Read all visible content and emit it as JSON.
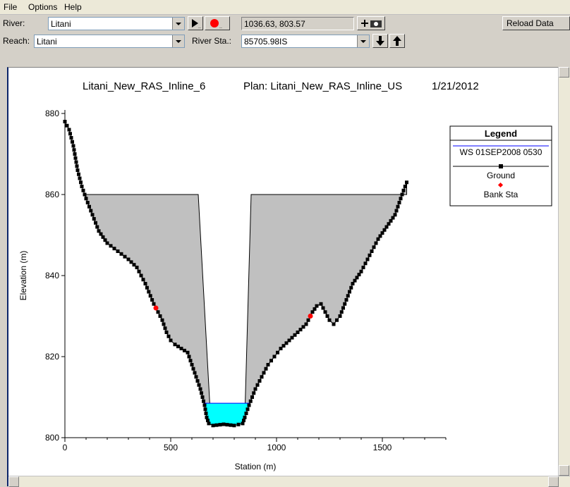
{
  "menu": {
    "file": "File",
    "options": "Options",
    "help": "Help"
  },
  "toolbar": {
    "river_label": "River:",
    "river_value": "Litani",
    "reach_label": "Reach:",
    "reach_value": "Litani",
    "river_sta_label": "River Sta.:",
    "river_sta_value": "85705.98IS",
    "coords": "1036.63, 803.57",
    "reload_label": "Reload Data"
  },
  "plot_header": {
    "geometry": "Litani_New_RAS_Inline_6",
    "plan": "Plan: Litani_New_RAS_Inline_US",
    "date": "1/21/2012"
  },
  "legend": {
    "title": "Legend",
    "ws": "WS 01SEP2008 0530",
    "ground": "Ground",
    "bank": "Bank Sta"
  },
  "colors": {
    "water": "#00ffff",
    "ground": "#000000",
    "bank": "#ff0000",
    "fill": "#c0c0c0",
    "ws_line": "#0000ff"
  },
  "chart_data": {
    "type": "line",
    "xlabel": "Station (m)",
    "ylabel": "Elevation (m)",
    "xlim": [
      0,
      1800
    ],
    "ylim": [
      800,
      880
    ],
    "xticks": [
      0,
      500,
      1000,
      1500
    ],
    "yticks": [
      800,
      820,
      840,
      860,
      880
    ],
    "water_surface": 808.5,
    "ground": [
      [
        0,
        878
      ],
      [
        20,
        876
      ],
      [
        40,
        872
      ],
      [
        60,
        866
      ],
      [
        80,
        862
      ],
      [
        100,
        859
      ],
      [
        130,
        855
      ],
      [
        160,
        851
      ],
      [
        200,
        848
      ],
      [
        250,
        846
      ],
      [
        300,
        844
      ],
      [
        340,
        842
      ],
      [
        380,
        838
      ],
      [
        420,
        833
      ],
      [
        440,
        831
      ],
      [
        460,
        829
      ],
      [
        480,
        826
      ],
      [
        500,
        824
      ],
      [
        520,
        823
      ],
      [
        550,
        822
      ],
      [
        580,
        821
      ],
      [
        600,
        818
      ],
      [
        620,
        815
      ],
      [
        640,
        812
      ],
      [
        660,
        808
      ],
      [
        670,
        805
      ],
      [
        680,
        803.5
      ],
      [
        700,
        803
      ],
      [
        750,
        803.3
      ],
      [
        800,
        803
      ],
      [
        840,
        803.5
      ],
      [
        850,
        805
      ],
      [
        870,
        808
      ],
      [
        900,
        812
      ],
      [
        930,
        815
      ],
      [
        960,
        818
      ],
      [
        990,
        820
      ],
      [
        1020,
        822
      ],
      [
        1060,
        824
      ],
      [
        1100,
        826
      ],
      [
        1140,
        828
      ],
      [
        1170,
        831
      ],
      [
        1190,
        832.5
      ],
      [
        1210,
        833
      ],
      [
        1230,
        831
      ],
      [
        1250,
        829
      ],
      [
        1270,
        828
      ],
      [
        1300,
        830
      ],
      [
        1330,
        834
      ],
      [
        1360,
        838
      ],
      [
        1400,
        841
      ],
      [
        1440,
        845
      ],
      [
        1480,
        849
      ],
      [
        1520,
        852
      ],
      [
        1560,
        855
      ],
      [
        1580,
        858
      ],
      [
        1600,
        861
      ],
      [
        1615,
        863
      ]
    ],
    "ineffective": [
      {
        "x": [
          100,
          630,
          690
        ],
        "top": 860
      },
      {
        "x": [
          850,
          880,
          1615
        ],
        "top": 860
      }
    ],
    "bank_stations": [
      [
        430,
        832
      ],
      [
        1160,
        830
      ]
    ]
  }
}
